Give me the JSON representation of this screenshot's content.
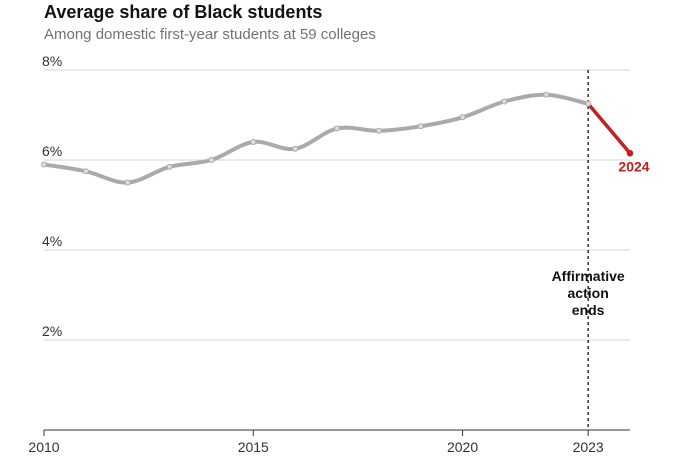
{
  "chart_data": {
    "type": "line",
    "title": "Average share of Black students",
    "subtitle": "Among domestic first-year students at 59 colleges",
    "x": [
      2010,
      2011,
      2012,
      2013,
      2014,
      2015,
      2016,
      2017,
      2018,
      2019,
      2020,
      2021,
      2022,
      2023,
      2024
    ],
    "series": [
      {
        "values": [
          5.9,
          5.75,
          5.5,
          5.85,
          6.0,
          6.4,
          6.25,
          6.7,
          6.65,
          6.75,
          6.95,
          7.3,
          7.45,
          7.25,
          6.15
        ]
      }
    ],
    "highlight": {
      "from": 2023,
      "to": 2024,
      "color": "#c41e1e",
      "label": "2024"
    },
    "line_color": "#aaaaaa",
    "ylim": [
      0,
      8
    ],
    "xlim": [
      2010,
      2024
    ],
    "y_ticks": [
      {
        "value": 2,
        "label": "2%"
      },
      {
        "value": 4,
        "label": "4%"
      },
      {
        "value": 6,
        "label": "6%"
      },
      {
        "value": 8,
        "label": "8%"
      }
    ],
    "x_ticks": [
      {
        "value": 2010,
        "label": "2010"
      },
      {
        "value": 2015,
        "label": "2015"
      },
      {
        "value": 2020,
        "label": "2020"
      },
      {
        "value": 2023,
        "label": "2023"
      }
    ],
    "annotation": {
      "x": 2023,
      "lines": [
        "Affirmative",
        "action",
        "ends"
      ]
    },
    "grid": true
  }
}
